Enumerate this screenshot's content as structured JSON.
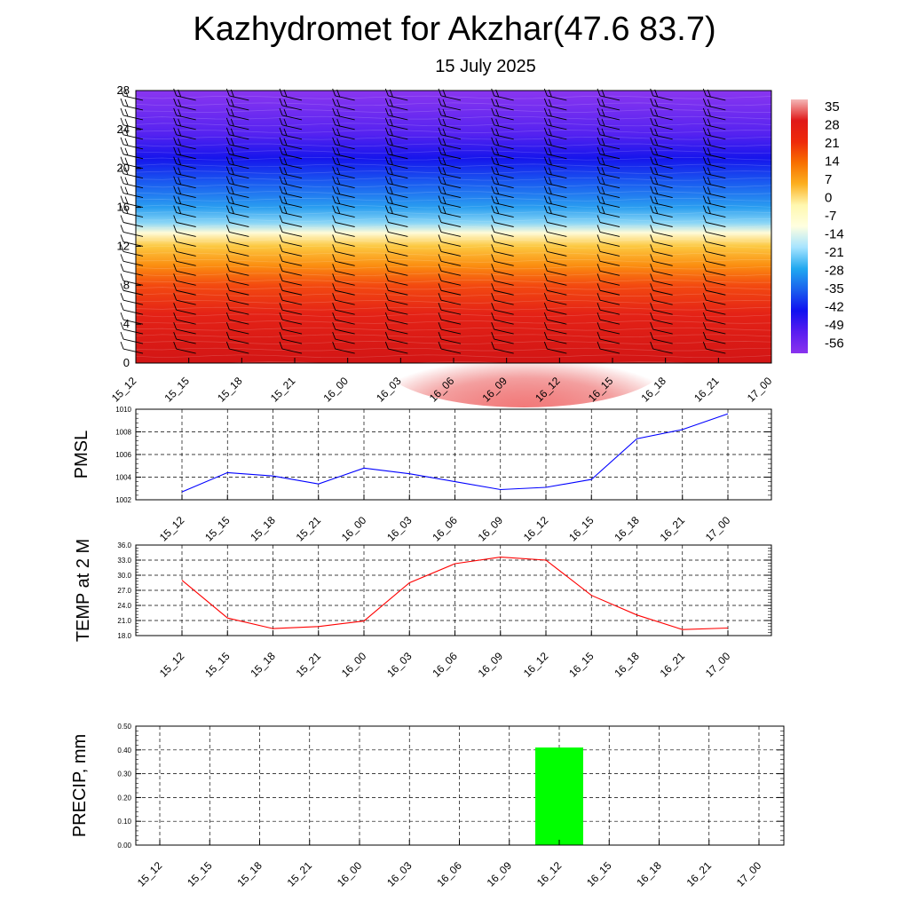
{
  "title": "Kazhydromet for Akzhar(47.6 83.7)",
  "subtitle": "15 July 2025",
  "time_labels": [
    "15_12",
    "15_15",
    "15_18",
    "15_21",
    "16_00",
    "16_03",
    "16_06",
    "16_09",
    "16_12",
    "16_15",
    "16_18",
    "16_21",
    "17_00"
  ],
  "chart_data": [
    {
      "type": "heatmap",
      "name": "temperature-cross-section",
      "x": [
        "15_12",
        "15_15",
        "15_18",
        "15_21",
        "16_00",
        "16_03",
        "16_06",
        "16_09",
        "16_12",
        "16_15",
        "16_18",
        "16_21",
        "17_00"
      ],
      "ylim": [
        0,
        28
      ],
      "yticks": [
        "0",
        "4",
        "8",
        "12",
        "16",
        "20",
        "24",
        "28"
      ],
      "colorbar": {
        "labels": [
          "35",
          "28",
          "21",
          "14",
          "7",
          "0",
          "-7",
          "-14",
          "-21",
          "-28",
          "-35",
          "-42",
          "-49",
          "-56"
        ],
        "stops": [
          "#f4b8b8",
          "#e01818",
          "#ee2a0a",
          "#f87000",
          "#fcb020",
          "#fff8b0",
          "#ffffe0",
          "#a6e4ff",
          "#20a8f0",
          "#1a60ee",
          "#1010f0",
          "#5a1df0",
          "#8a33ee"
        ]
      },
      "value_stops": [
        {
          "h": 0,
          "c": "#d21515"
        },
        {
          "h": 5,
          "c": "#e42216"
        },
        {
          "h": 8,
          "c": "#f34a10"
        },
        {
          "h": 10,
          "c": "#fb8d10"
        },
        {
          "h": 12,
          "c": "#fcc840"
        },
        {
          "h": 13.4,
          "c": "#fffbd8"
        },
        {
          "h": 14.4,
          "c": "#8ad6f6"
        },
        {
          "h": 16,
          "c": "#2a9ef0"
        },
        {
          "h": 18.5,
          "c": "#1a5cf0"
        },
        {
          "h": 21,
          "c": "#1515ec"
        },
        {
          "h": 23.5,
          "c": "#5422f0"
        },
        {
          "h": 28,
          "c": "#8a36f0"
        }
      ]
    },
    {
      "type": "line",
      "name": "pmsl",
      "ylabel": "PMSL",
      "x": [
        "15_12",
        "15_15",
        "15_18",
        "15_21",
        "16_00",
        "16_03",
        "16_06",
        "16_09",
        "16_12",
        "16_15",
        "16_18",
        "16_21",
        "17_00"
      ],
      "series": [
        {
          "values": [
            1002.7,
            1004.4,
            1004.1,
            1003.4,
            1004.8,
            1004.3,
            1003.6,
            1002.9,
            1003.1,
            1003.8,
            1007.4,
            1008.2,
            1009.6
          ],
          "color": "#0000ff"
        }
      ],
      "ylim": [
        1002,
        1010
      ],
      "yticks": [
        "1002",
        "1004",
        "1006",
        "1008",
        "1010"
      ],
      "grid": true
    },
    {
      "type": "line",
      "name": "temp",
      "ylabel": "TEMP at 2 M",
      "x": [
        "15_12",
        "15_15",
        "15_18",
        "15_21",
        "16_00",
        "16_03",
        "16_06",
        "16_09",
        "16_12",
        "16_15",
        "16_18",
        "16_21",
        "17_00"
      ],
      "series": [
        {
          "values": [
            29.0,
            21.5,
            19.4,
            19.8,
            20.9,
            28.5,
            32.3,
            33.6,
            33.0,
            26.0,
            22.1,
            19.2,
            19.5
          ],
          "color": "#ff0000"
        }
      ],
      "ylim": [
        18,
        36
      ],
      "yticks": [
        "18.0",
        "21.0",
        "24.0",
        "27.0",
        "30.0",
        "33.0",
        "36.0"
      ],
      "grid": true
    },
    {
      "type": "bar",
      "name": "precip",
      "ylabel": "PRECIP, mm",
      "categories": [
        "15_12",
        "15_15",
        "15_18",
        "15_21",
        "16_00",
        "16_03",
        "16_06",
        "16_09",
        "16_12",
        "16_15",
        "16_18",
        "16_21",
        "17_00"
      ],
      "values": [
        0,
        0,
        0,
        0,
        0,
        0,
        0,
        0,
        0.41,
        0,
        0,
        0,
        0
      ],
      "color": "#00ff00",
      "ylim": [
        0,
        0.5
      ],
      "yticks": [
        "0.00",
        "0.10",
        "0.20",
        "0.30",
        "0.40",
        "0.50"
      ],
      "grid": true
    }
  ]
}
